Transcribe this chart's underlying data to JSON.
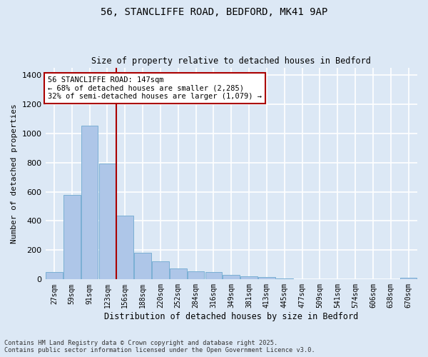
{
  "title_line1": "56, STANCLIFFE ROAD, BEDFORD, MK41 9AP",
  "title_line2": "Size of property relative to detached houses in Bedford",
  "xlabel": "Distribution of detached houses by size in Bedford",
  "ylabel": "Number of detached properties",
  "categories": [
    "27sqm",
    "59sqm",
    "91sqm",
    "123sqm",
    "156sqm",
    "188sqm",
    "220sqm",
    "252sqm",
    "284sqm",
    "316sqm",
    "349sqm",
    "381sqm",
    "413sqm",
    "445sqm",
    "477sqm",
    "509sqm",
    "541sqm",
    "574sqm",
    "606sqm",
    "638sqm",
    "670sqm"
  ],
  "values": [
    50,
    580,
    1050,
    795,
    435,
    180,
    125,
    75,
    55,
    50,
    30,
    20,
    15,
    8,
    3,
    0,
    0,
    0,
    0,
    0,
    10
  ],
  "bar_color": "#aec6e8",
  "bar_edge_color": "#7aafd4",
  "background_color": "#dce8f5",
  "grid_color": "#ffffff",
  "vline_x": 3.5,
  "vline_color": "#aa0000",
  "annotation_text": "56 STANCLIFFE ROAD: 147sqm\n← 68% of detached houses are smaller (2,285)\n32% of semi-detached houses are larger (1,079) →",
  "annotation_box_color": "#ffffff",
  "annotation_box_edge": "#aa0000",
  "ylim": [
    0,
    1450
  ],
  "yticks": [
    0,
    200,
    400,
    600,
    800,
    1000,
    1200,
    1400
  ],
  "footer_line1": "Contains HM Land Registry data © Crown copyright and database right 2025.",
  "footer_line2": "Contains public sector information licensed under the Open Government Licence v3.0."
}
